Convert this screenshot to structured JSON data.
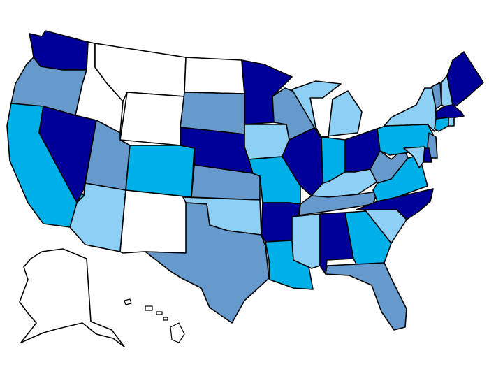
{
  "map": {
    "type": "choropleth",
    "region": "United States",
    "colors": {
      "none": "#ffffff",
      "light": "#8ecff5",
      "medium": "#6699cc",
      "bright": "#00b0e8",
      "dark": "#000099"
    },
    "states": {
      "WA": "dark",
      "OR": "medium",
      "CA": "bright",
      "ID": "none",
      "NV": "dark",
      "MT": "none",
      "WY": "none",
      "UT": "medium",
      "AZ": "light",
      "CO": "bright",
      "NM": "none",
      "ND": "none",
      "SD": "medium",
      "NE": "dark",
      "KS": "medium",
      "OK": "light",
      "TX": "medium",
      "MN": "dark",
      "IA": "light",
      "MO": "bright",
      "AR": "dark",
      "LA": "bright",
      "WI": "medium",
      "IL": "dark",
      "MI": "light",
      "IN": "bright",
      "OH": "dark",
      "KY": "light",
      "TN": "medium",
      "MS": "light",
      "AL": "dark",
      "GA": "bright",
      "FL": "medium",
      "SC": "light",
      "NC": "dark",
      "VA": "bright",
      "WV": "medium",
      "PA": "bright",
      "NY": "light",
      "VT": "medium",
      "NH": "light",
      "ME": "dark",
      "MA": "dark",
      "RI": "light",
      "CT": "bright",
      "NJ": "medium",
      "DE": "dark",
      "MD": "light",
      "AK": "none",
      "HI": "none"
    }
  }
}
